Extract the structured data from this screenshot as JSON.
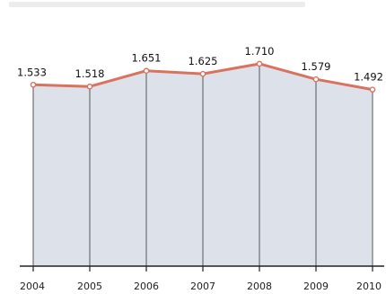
{
  "chart_data": {
    "type": "area",
    "categories": [
      "2004",
      "2005",
      "2006",
      "2007",
      "2008",
      "2009",
      "2010"
    ],
    "values": [
      1.533,
      1.518,
      1.651,
      1.625,
      1.71,
      1.579,
      1.492
    ],
    "data_labels": [
      "1.533",
      "1.518",
      "1.651",
      "1.625",
      "1.710",
      "1.579",
      "1.492"
    ],
    "title": "",
    "xlabel": "",
    "ylabel": "",
    "ylim": [
      0,
      1.75
    ],
    "grid": false,
    "legend": "none",
    "colors": {
      "line": "#d9725f",
      "fill": "#dde2ea",
      "dividers": "#555555",
      "axis": "#222222"
    }
  }
}
